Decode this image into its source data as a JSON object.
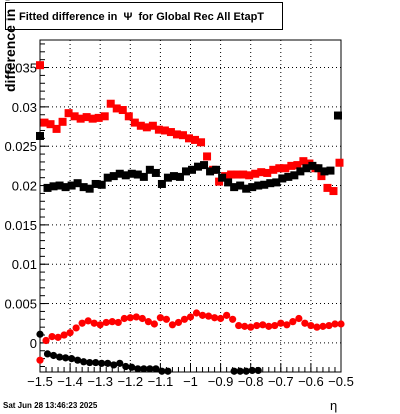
{
  "title": "Fitted difference in  Ψ  for Global Rec All EtapT",
  "timestamp": "Sat Jun 28 13:46:23 2025",
  "chart_data": {
    "type": "scatter",
    "title": "Fitted difference in  Ψ  for Global Rec All EtapT",
    "xlabel": "η",
    "ylabel": "difference in  Ψ",
    "xlim": [
      -1.5,
      -0.5
    ],
    "ylim": [
      -0.0037,
      0.0385
    ],
    "grid": true,
    "x_ticks": [
      "−1.5",
      "−1.4",
      "−1.3",
      "−1.2",
      "−1.1",
      "−1",
      "−0.9",
      "−0.8",
      "−0.7",
      "−0.6",
      "−0.5"
    ],
    "y_ticks": [
      "0",
      "0.005",
      "0.01",
      "0.015",
      "0.02",
      "0.025",
      "0.03",
      "0.035"
    ],
    "series": [
      {
        "marker": "square",
        "color": "#ff0000",
        "x": [
          -1.5,
          -1.485,
          -1.465,
          -1.445,
          -1.425,
          -1.405,
          -1.385,
          -1.365,
          -1.345,
          -1.325,
          -1.305,
          -1.285,
          -1.265,
          -1.245,
          -1.225,
          -1.205,
          -1.185,
          -1.165,
          -1.145,
          -1.125,
          -1.105,
          -1.085,
          -1.065,
          -1.045,
          -1.025,
          -1.005,
          -0.985,
          -0.965,
          -0.945,
          -0.925,
          -0.905,
          -0.885,
          -0.865,
          -0.845,
          -0.825,
          -0.805,
          -0.785,
          -0.765,
          -0.745,
          -0.725,
          -0.705,
          -0.685,
          -0.665,
          -0.645,
          -0.625,
          -0.605,
          -0.585,
          -0.565,
          -0.545,
          -0.525,
          -0.505
        ],
        "y": [
          0.0353,
          0.028,
          0.0278,
          0.0272,
          0.0281,
          0.0292,
          0.0288,
          0.0285,
          0.0287,
          0.0285,
          0.0286,
          0.0288,
          0.0304,
          0.0298,
          0.0296,
          0.0288,
          0.028,
          0.0276,
          0.0274,
          0.0276,
          0.0271,
          0.027,
          0.0268,
          0.0265,
          0.0264,
          0.026,
          0.0258,
          0.0255,
          0.0237,
          0.022,
          0.0205,
          0.0212,
          0.0214,
          0.0214,
          0.0214,
          0.0213,
          0.0215,
          0.0217,
          0.0216,
          0.022,
          0.0222,
          0.0222,
          0.0225,
          0.0226,
          0.0231,
          0.0228,
          0.0222,
          0.0212,
          0.0197,
          0.0193,
          0.0229
        ]
      },
      {
        "marker": "square",
        "color": "#000000",
        "x": [
          -1.5,
          -1.475,
          -1.455,
          -1.435,
          -1.415,
          -1.395,
          -1.375,
          -1.355,
          -1.335,
          -1.315,
          -1.295,
          -1.275,
          -1.255,
          -1.235,
          -1.215,
          -1.195,
          -1.175,
          -1.155,
          -1.135,
          -1.115,
          -1.095,
          -1.075,
          -1.055,
          -1.035,
          -1.015,
          -0.995,
          -0.975,
          -0.955,
          -0.935,
          -0.915,
          -0.895,
          -0.875,
          -0.855,
          -0.835,
          -0.815,
          -0.795,
          -0.775,
          -0.755,
          -0.735,
          -0.715,
          -0.695,
          -0.675,
          -0.655,
          -0.635,
          -0.615,
          -0.595,
          -0.575,
          -0.555,
          -0.535,
          -0.51
        ],
        "y": [
          0.0263,
          0.0197,
          0.0199,
          0.02,
          0.0198,
          0.02,
          0.0203,
          0.0198,
          0.0196,
          0.0202,
          0.0201,
          0.021,
          0.0212,
          0.0215,
          0.0213,
          0.0215,
          0.0214,
          0.0211,
          0.022,
          0.0216,
          0.0202,
          0.021,
          0.0212,
          0.0211,
          0.0218,
          0.022,
          0.0224,
          0.0226,
          0.0218,
          0.022,
          0.021,
          0.0204,
          0.0198,
          0.02,
          0.0196,
          0.0198,
          0.02,
          0.0201,
          0.0203,
          0.0204,
          0.0209,
          0.0211,
          0.0213,
          0.0218,
          0.0222,
          0.0225,
          0.0222,
          0.0218,
          0.0219,
          0.0289
        ]
      },
      {
        "marker": "circle",
        "color": "#ff0000",
        "x": [
          -1.5,
          -1.48,
          -1.46,
          -1.44,
          -1.42,
          -1.4,
          -1.38,
          -1.36,
          -1.34,
          -1.32,
          -1.3,
          -1.28,
          -1.26,
          -1.24,
          -1.22,
          -1.2,
          -1.18,
          -1.16,
          -1.14,
          -1.12,
          -1.1,
          -1.08,
          -1.06,
          -1.04,
          -1.02,
          -1.0,
          -0.98,
          -0.96,
          -0.94,
          -0.92,
          -0.9,
          -0.88,
          -0.86,
          -0.84,
          -0.82,
          -0.8,
          -0.78,
          -0.76,
          -0.74,
          -0.72,
          -0.7,
          -0.68,
          -0.66,
          -0.64,
          -0.62,
          -0.6,
          -0.58,
          -0.56,
          -0.54,
          -0.52,
          -0.5
        ],
        "y": [
          -0.0022,
          0.0003,
          0.0008,
          0.0007,
          0.001,
          0.0013,
          0.0019,
          0.0025,
          0.0028,
          0.0025,
          0.0023,
          0.0026,
          0.0027,
          0.0026,
          0.0031,
          0.0032,
          0.0033,
          0.0031,
          0.0027,
          0.0024,
          0.0032,
          0.003,
          0.0023,
          0.0026,
          0.003,
          0.0033,
          0.0038,
          0.0035,
          0.0034,
          0.0032,
          0.0031,
          0.0035,
          0.003,
          0.0022,
          0.0021,
          0.002,
          0.0022,
          0.0023,
          0.0021,
          0.0022,
          0.0025,
          0.0023,
          0.0027,
          0.0031,
          0.0025,
          0.0022,
          0.002,
          0.0021,
          0.0022,
          0.0024,
          0.0024
        ]
      },
      {
        "marker": "circle",
        "color": "#000000",
        "x": [
          -1.5,
          -1.475,
          -1.455,
          -1.435,
          -1.415,
          -1.395,
          -1.375,
          -1.355,
          -1.335,
          -1.315,
          -1.295,
          -1.275,
          -1.255,
          -1.235,
          -1.215,
          -1.195,
          -1.175,
          -1.155,
          -1.135,
          -1.115,
          -1.095,
          -1.075,
          -0.855,
          -0.835,
          -0.815,
          -0.795,
          -0.775
        ],
        "y": [
          0.0011,
          -0.0014,
          -0.0016,
          -0.0018,
          -0.0019,
          -0.002,
          -0.0022,
          -0.0024,
          -0.0025,
          -0.0025,
          -0.0026,
          -0.0026,
          -0.0028,
          -0.0026,
          -0.003,
          -0.0031,
          -0.0033,
          -0.0033,
          -0.0033,
          -0.0033,
          -0.0036,
          -0.0036,
          -0.0036,
          -0.0036,
          -0.0036,
          -0.0035,
          -0.0035
        ]
      }
    ]
  }
}
